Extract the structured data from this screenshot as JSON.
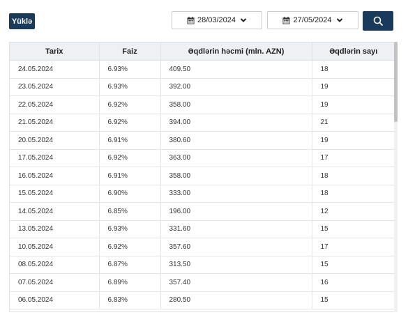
{
  "toolbar": {
    "download_label": "Yüklə",
    "start_date": "28/03/2024",
    "end_date": "27/05/2024"
  },
  "table": {
    "headers": [
      "Tarix",
      "Faiz",
      "Əqdlərin həcmi (mln. AZN)",
      "Əqdlərin sayı"
    ],
    "rows": [
      [
        "24.05.2024",
        "6.93%",
        "409.50",
        "18"
      ],
      [
        "23.05.2024",
        "6.93%",
        "392.00",
        "19"
      ],
      [
        "22.05.2024",
        "6.92%",
        "358.00",
        "19"
      ],
      [
        "21.05.2024",
        "6.92%",
        "394.00",
        "21"
      ],
      [
        "20.05.2024",
        "6.91%",
        "380.60",
        "19"
      ],
      [
        "17.05.2024",
        "6.92%",
        "363.00",
        "17"
      ],
      [
        "16.05.2024",
        "6.91%",
        "358.00",
        "18"
      ],
      [
        "15.05.2024",
        "6.90%",
        "333.00",
        "18"
      ],
      [
        "14.05.2024",
        "6.85%",
        "196.00",
        "12"
      ],
      [
        "13.05.2024",
        "6.93%",
        "331.60",
        "15"
      ],
      [
        "10.05.2024",
        "6.92%",
        "357.60",
        "17"
      ],
      [
        "08.05.2024",
        "6.87%",
        "313.50",
        "15"
      ],
      [
        "07.05.2024",
        "6.89%",
        "357.40",
        "16"
      ],
      [
        "06.05.2024",
        "6.83%",
        "280.50",
        "15"
      ]
    ]
  },
  "icons": {
    "calendar": "calendar-icon",
    "chevron": "chevron-down-icon",
    "search": "search-icon"
  },
  "colors": {
    "primary": "#1a3a5c",
    "header_bg": "#eef0f3"
  }
}
